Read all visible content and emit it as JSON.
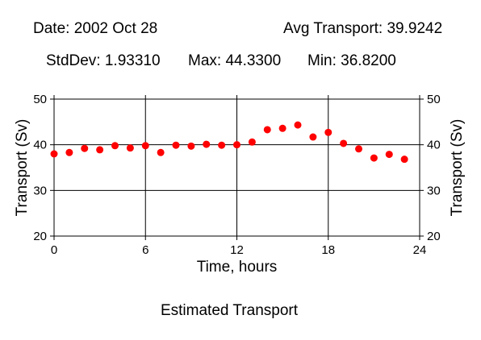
{
  "header": {
    "date_text": "Date: 2002 Oct 28",
    "avg_text": "Avg Transport: 39.9242",
    "stddev_text": "StdDev: 1.93310",
    "max_text": "Max: 44.3300",
    "min_text": "Min: 36.8200"
  },
  "caption": "Estimated Transport",
  "colors": {
    "point": "#ff0000",
    "axis": "#000000",
    "grid": "#000000"
  },
  "chart_data": {
    "type": "scatter",
    "title": "",
    "xlabel": "Time, hours",
    "ylabel": "Transport (Sv)",
    "ylabel_right": "Transport (Sv)",
    "xlim": [
      0,
      24
    ],
    "ylim": [
      20,
      50
    ],
    "xticks": [
      0,
      6,
      12,
      18,
      24
    ],
    "xtick_labels": [
      "0",
      "6",
      "12",
      "18",
      "24"
    ],
    "yticks": [
      20,
      30,
      40,
      50
    ],
    "ytick_labels": [
      "20",
      "30",
      "40",
      "50"
    ],
    "grid": true,
    "legend": "none",
    "series": [
      {
        "x": [
          0,
          1,
          2,
          3,
          4,
          5,
          6,
          7,
          8,
          9,
          10,
          11,
          12,
          13,
          14,
          15,
          16,
          17,
          18,
          19,
          20,
          21,
          22,
          23
        ],
        "y": [
          38.0,
          38.3,
          39.2,
          38.9,
          39.8,
          39.3,
          39.8,
          38.3,
          39.9,
          39.7,
          40.1,
          39.9,
          40.0,
          40.6,
          43.3,
          43.6,
          44.33,
          41.7,
          42.7,
          40.3,
          39.1,
          37.1,
          37.9,
          36.82
        ]
      }
    ]
  }
}
